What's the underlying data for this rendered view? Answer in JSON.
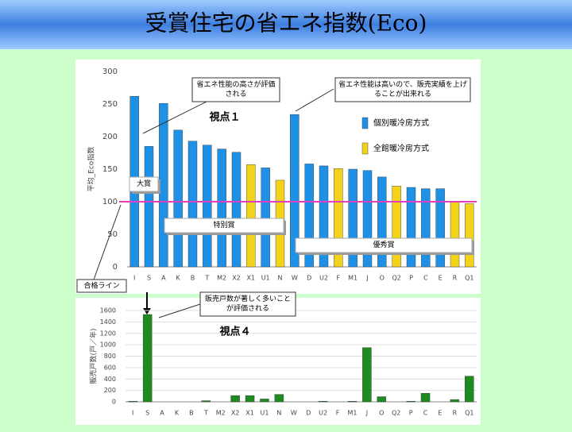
{
  "title": "受賞住宅の省エネ指数(Eco)",
  "chart_data": [
    {
      "type": "bar",
      "y_label": "平均_Eco指数",
      "categories": [
        "I",
        "S",
        "A",
        "K",
        "B",
        "T",
        "M2",
        "X2",
        "X1",
        "U1",
        "N",
        "W",
        "D",
        "U2",
        "F",
        "M1",
        "J",
        "O",
        "Q2",
        "P",
        "C",
        "E",
        "R",
        "Q1"
      ],
      "series": [
        {
          "name": "個別暖冷房方式",
          "color": "#1e90e6",
          "values": [
            262,
            185,
            251,
            210,
            193,
            187,
            181,
            176,
            null,
            152,
            null,
            234,
            158,
            155,
            null,
            150,
            148,
            138,
            null,
            122,
            120,
            120,
            null,
            null
          ]
        },
        {
          "name": "全館暖冷房方式",
          "color": "#f2d21a",
          "values": [
            null,
            null,
            null,
            null,
            null,
            null,
            null,
            null,
            157,
            null,
            133,
            null,
            null,
            null,
            151,
            null,
            null,
            null,
            124,
            null,
            null,
            null,
            100,
            97
          ]
        }
      ],
      "ylim": [
        0,
        300
      ],
      "yticks": [
        0,
        50,
        100,
        150,
        200,
        250,
        300
      ],
      "reference_line": {
        "value": 100,
        "label": "合格ライン",
        "color": "#e040c0"
      },
      "annotations": [
        "省エネ性能の高さが評価される",
        "省エネ性能は高いので、販売実績を上げることが出来れる",
        "視点１",
        "大賞",
        "特別賞",
        "優秀賞"
      ]
    },
    {
      "type": "bar",
      "y_label": "販売戸数(戸／年)",
      "categories": [
        "I",
        "S",
        "A",
        "K",
        "B",
        "T",
        "M2",
        "X2",
        "X1",
        "U1",
        "N",
        "W",
        "D",
        "U2",
        "F",
        "M1",
        "J",
        "O",
        "Q2",
        "P",
        "C",
        "E",
        "R",
        "Q1"
      ],
      "color": "#1f8a1f",
      "values": [
        10,
        1530,
        0,
        0,
        0,
        20,
        0,
        110,
        110,
        50,
        130,
        0,
        0,
        10,
        0,
        10,
        950,
        90,
        0,
        10,
        150,
        0,
        40,
        450
      ],
      "ylim": [
        0,
        1600
      ],
      "yticks": [
        0,
        200,
        400,
        600,
        800,
        1000,
        1200,
        1400,
        1600
      ],
      "annotations": [
        "販売戸数が著しく多いことが評価される",
        "視点４"
      ]
    }
  ]
}
